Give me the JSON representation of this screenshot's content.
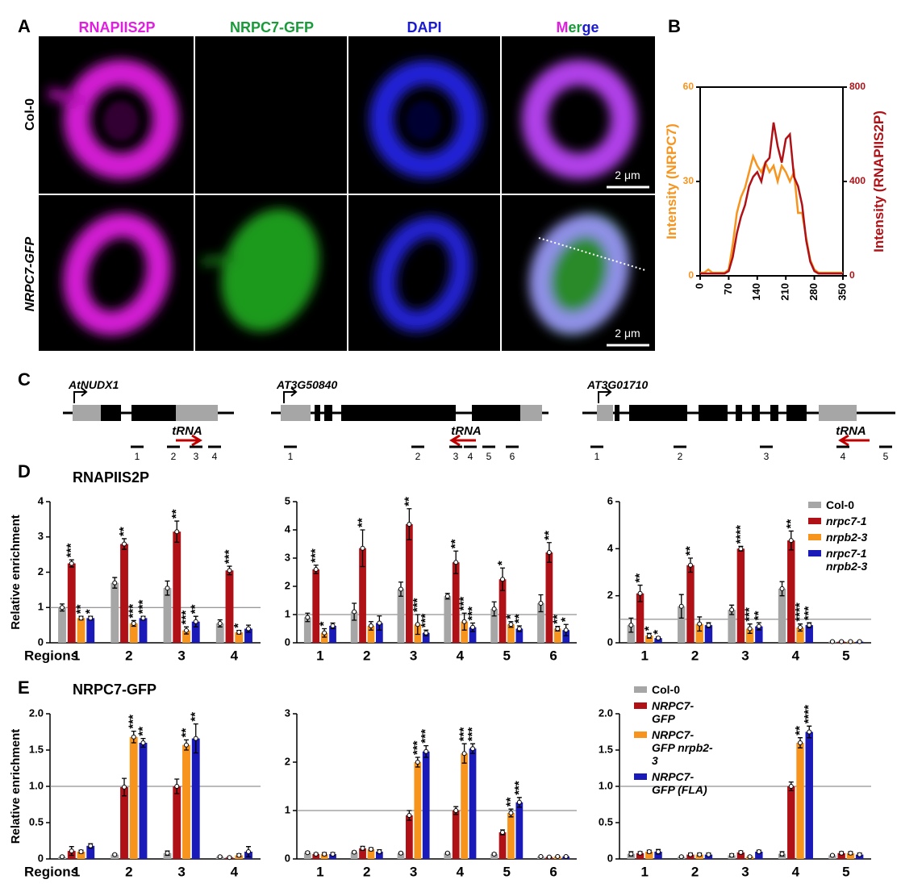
{
  "panel_labels": [
    "A",
    "B",
    "C",
    "D",
    "E"
  ],
  "microscopy": {
    "columns": [
      "RNAPIIS2P",
      "NRPC7-GFP",
      "DAPI"
    ],
    "merge": [
      "M",
      "er",
      "ge"
    ],
    "rows": [
      "Col-0",
      "NRPC7-GFP"
    ],
    "scale_bar": "2 μm"
  },
  "gene_diagrams": [
    {
      "name": "AtNUDX1",
      "trna": "tRNA",
      "regions": [
        "1",
        "2",
        "3",
        "4"
      ]
    },
    {
      "name": "AT3G50840",
      "trna": "tRNA",
      "regions": [
        "1",
        "2",
        "3",
        "4",
        "5",
        "6"
      ]
    },
    {
      "name": "AT3G01710",
      "trna": "tRNA",
      "regions": [
        "1",
        "2",
        "3",
        "4",
        "5"
      ]
    }
  ],
  "chart_data": [
    {
      "type": "line",
      "x": [
        0,
        10,
        20,
        30,
        40,
        50,
        60,
        70,
        80,
        90,
        100,
        110,
        120,
        130,
        140,
        150,
        160,
        170,
        180,
        190,
        200,
        210,
        220,
        230,
        240,
        250,
        260,
        270,
        280,
        290,
        300,
        310,
        320,
        330,
        340,
        350
      ],
      "xlim": [
        0,
        350
      ],
      "xticks": [
        0,
        70,
        140,
        210,
        280,
        350
      ],
      "ylim": [
        0,
        60
      ],
      "yticks": [
        0,
        30,
        60
      ],
      "y2lim": [
        0,
        800
      ],
      "y2ticks": [
        0,
        400,
        800
      ],
      "ylabel": "Intensity (NRPC7)",
      "y2label": "Intensity (RNAPIIS2P)",
      "series": [
        {
          "color": "#f7941d",
          "values": [
            1,
            1,
            2,
            1,
            1,
            1,
            1,
            2,
            10,
            20,
            25,
            28,
            33,
            38,
            35,
            33,
            36,
            33,
            35,
            30,
            35,
            33,
            30,
            33,
            20,
            20,
            12,
            5,
            2,
            1,
            1,
            1,
            1,
            1,
            1,
            1
          ]
        },
        {
          "color": "#b01116",
          "axis": "y2",
          "values": [
            10,
            10,
            10,
            10,
            10,
            10,
            10,
            20,
            80,
            180,
            250,
            300,
            380,
            420,
            440,
            400,
            480,
            500,
            650,
            550,
            480,
            580,
            600,
            420,
            380,
            300,
            150,
            60,
            20,
            10,
            10,
            10,
            10,
            10,
            10,
            10
          ]
        }
      ]
    },
    {
      "type": "bar",
      "title": "RNAPIIS2P",
      "ylabel": "Relative enrichment",
      "xlabel": "Regions",
      "categories": [
        "1",
        "2",
        "3",
        "4"
      ],
      "ylim": [
        0,
        4
      ],
      "yticks": [
        0,
        1,
        2,
        3,
        4
      ],
      "reference_line": 1,
      "series": [
        {
          "color": "#a6a6a6",
          "values": [
            1.0,
            1.7,
            1.55,
            0.55
          ],
          "errors": [
            0.1,
            0.15,
            0.2,
            0.1
          ],
          "significance": [
            null,
            null,
            null,
            null
          ]
        },
        {
          "color": "#b01116",
          "values": [
            2.25,
            2.8,
            3.15,
            2.05
          ],
          "errors": [
            0.1,
            0.15,
            0.3,
            0.12
          ],
          "significance": [
            "***",
            "**",
            "**",
            "***"
          ]
        },
        {
          "color": "#f7941d",
          "values": [
            0.7,
            0.55,
            0.35,
            0.3
          ],
          "errors": [
            0.05,
            0.08,
            0.1,
            0.05
          ],
          "significance": [
            "**",
            "***",
            "***",
            "*"
          ]
        },
        {
          "color": "#1a1ab8",
          "values": [
            0.7,
            0.7,
            0.6,
            0.4
          ],
          "errors": [
            0.05,
            0.05,
            0.15,
            0.1
          ],
          "significance": [
            "*",
            "***",
            "**",
            null
          ]
        }
      ]
    },
    {
      "type": "bar",
      "categories": [
        "1",
        "2",
        "3",
        "4",
        "5",
        "6"
      ],
      "ylim": [
        0,
        5
      ],
      "yticks": [
        0,
        1,
        2,
        3,
        4,
        5
      ],
      "reference_line": 1,
      "series": [
        {
          "color": "#a6a6a6",
          "values": [
            0.9,
            1.1,
            1.9,
            1.65,
            1.2,
            1.4
          ],
          "errors": [
            0.15,
            0.3,
            0.25,
            0.1,
            0.25,
            0.3
          ],
          "significance": [
            null,
            null,
            null,
            null,
            null,
            null
          ]
        },
        {
          "color": "#b01116",
          "values": [
            2.6,
            3.35,
            4.2,
            2.85,
            2.25,
            3.2
          ],
          "errors": [
            0.15,
            0.65,
            0.55,
            0.4,
            0.4,
            0.35
          ],
          "significance": [
            "***",
            "**",
            "**",
            "**",
            "*",
            "**"
          ]
        },
        {
          "color": "#f7941d",
          "values": [
            0.35,
            0.6,
            0.65,
            0.75,
            0.65,
            0.5
          ],
          "errors": [
            0.15,
            0.15,
            0.35,
            0.3,
            0.1,
            0.08
          ],
          "significance": [
            "*",
            null,
            "***",
            "***",
            "*",
            "**"
          ]
        },
        {
          "color": "#1a1ab8",
          "values": [
            0.6,
            0.7,
            0.35,
            0.55,
            0.5,
            0.45
          ],
          "errors": [
            0.1,
            0.25,
            0.1,
            0.15,
            0.1,
            0.2
          ],
          "significance": [
            null,
            null,
            "***",
            "***",
            "**",
            "*"
          ]
        }
      ]
    },
    {
      "type": "bar",
      "categories": [
        "1",
        "2",
        "3",
        "4",
        "5"
      ],
      "ylim": [
        0,
        6
      ],
      "yticks": [
        0,
        2,
        4,
        6
      ],
      "reference_line": 1,
      "legend": "upper right",
      "series": [
        {
          "name": "Col-0",
          "color": "#a6a6a6",
          "values": [
            0.75,
            1.55,
            1.4,
            2.3,
            0.05
          ],
          "errors": [
            0.3,
            0.5,
            0.2,
            0.3,
            0.02
          ],
          "significance": [
            null,
            null,
            null,
            null,
            null
          ]
        },
        {
          "name": "nrpc7-1",
          "color": "#b01116",
          "values": [
            2.1,
            3.3,
            4.0,
            4.35,
            0.05
          ],
          "errors": [
            0.35,
            0.3,
            0.1,
            0.4,
            0.02
          ],
          "significance": [
            "**",
            "**",
            "****",
            "**",
            null
          ]
        },
        {
          "name": "nrpb2-3",
          "color": "#f7941d",
          "values": [
            0.3,
            0.8,
            0.6,
            0.65,
            0.05
          ],
          "errors": [
            0.1,
            0.3,
            0.2,
            0.15,
            0.02
          ],
          "significance": [
            "*",
            null,
            "***",
            "****",
            null
          ]
        },
        {
          "name": "nrpc7-1 nrpb2-3",
          "color": "#1a1ab8",
          "values": [
            0.2,
            0.75,
            0.7,
            0.75,
            0.05
          ],
          "errors": [
            0.05,
            0.1,
            0.15,
            0.1,
            0.02
          ],
          "significance": [
            "*",
            null,
            "**",
            "***",
            null
          ]
        }
      ]
    },
    {
      "type": "bar",
      "title": "NRPC7-GFP",
      "ylabel": "Relative enrichment",
      "xlabel": "Regions",
      "categories": [
        "1",
        "2",
        "3",
        "4"
      ],
      "ylim": [
        0,
        2
      ],
      "yticks": [
        0,
        0.5,
        {
          "value": 1,
          "label": "1.0"
        },
        1.5,
        {
          "value": 2,
          "label": "2.0"
        }
      ],
      "reference_line": 1,
      "series": [
        {
          "color": "#a6a6a6",
          "values": [
            0.03,
            0.06,
            0.08,
            0.03
          ],
          "errors": [
            0.01,
            0.01,
            0.03,
            0.01
          ],
          "significance": [
            null,
            null,
            null,
            null
          ]
        },
        {
          "color": "#b01116",
          "values": [
            0.11,
            0.99,
            1.0,
            0.02
          ],
          "errors": [
            0.06,
            0.12,
            0.1,
            0.01
          ],
          "significance": [
            null,
            null,
            null,
            null
          ]
        },
        {
          "color": "#f7941d",
          "values": [
            0.1,
            1.68,
            1.57,
            0.05
          ],
          "errors": [
            0.02,
            0.08,
            0.07,
            0.02
          ],
          "significance": [
            null,
            "***",
            "**",
            null
          ]
        },
        {
          "color": "#1a1ab8",
          "values": [
            0.18,
            1.6,
            1.66,
            0.1
          ],
          "errors": [
            0.03,
            0.06,
            0.2,
            0.07
          ],
          "significance": [
            null,
            "**",
            "**",
            null
          ]
        }
      ]
    },
    {
      "type": "bar",
      "categories": [
        "1",
        "2",
        "3",
        "4",
        "5",
        "6"
      ],
      "ylim": [
        0,
        3
      ],
      "yticks": [
        0,
        1,
        2,
        3
      ],
      "reference_line": 1,
      "series": [
        {
          "color": "#a6a6a6",
          "values": [
            0.13,
            0.14,
            0.12,
            0.12,
            0.1,
            0.05
          ],
          "errors": [
            0.02,
            0.02,
            0.02,
            0.02,
            0.02,
            0.01
          ],
          "significance": [
            null,
            null,
            null,
            null,
            null,
            null
          ]
        },
        {
          "color": "#b01116",
          "values": [
            0.1,
            0.22,
            0.9,
            1.0,
            0.55,
            0.04
          ],
          "errors": [
            0.02,
            0.04,
            0.1,
            0.08,
            0.05,
            0.01
          ],
          "significance": [
            null,
            null,
            null,
            null,
            null,
            null
          ]
        },
        {
          "color": "#f7941d",
          "values": [
            0.1,
            0.2,
            2.0,
            2.18,
            0.95,
            0.05
          ],
          "errors": [
            0.03,
            0.03,
            0.1,
            0.2,
            0.08,
            0.01
          ],
          "significance": [
            null,
            null,
            "***",
            "***",
            "**",
            null
          ]
        },
        {
          "color": "#1a1ab8",
          "values": [
            0.1,
            0.15,
            2.22,
            2.28,
            1.17,
            0.05
          ],
          "errors": [
            0.03,
            0.04,
            0.12,
            0.1,
            0.1,
            0.01
          ],
          "significance": [
            null,
            null,
            "***",
            "***",
            "***",
            null
          ]
        }
      ]
    },
    {
      "type": "bar",
      "categories": [
        "1",
        "2",
        "3",
        "4",
        "5"
      ],
      "ylim": [
        0,
        2
      ],
      "yticks": [
        0,
        0.5,
        {
          "value": 1,
          "label": "1.0"
        },
        1.5,
        {
          "value": 2,
          "label": "2.0"
        }
      ],
      "reference_line": 1,
      "legend": "upper left",
      "series": [
        {
          "name": "Col-0",
          "color": "#a6a6a6",
          "values": [
            0.07,
            0.03,
            0.05,
            0.07,
            0.05
          ],
          "errors": [
            0.03,
            0.01,
            0.02,
            0.03,
            0.01
          ],
          "significance": [
            null,
            null,
            null,
            null,
            null
          ]
        },
        {
          "name": "NRPC7-GFP",
          "color": "#b01116",
          "values": [
            0.08,
            0.06,
            0.09,
            1.0,
            0.08
          ],
          "errors": [
            0.02,
            0.02,
            0.02,
            0.06,
            0.02
          ],
          "significance": [
            null,
            null,
            null,
            null,
            null
          ]
        },
        {
          "name": "NRPC7-GFP nrpb2-3",
          "color": "#f7941d",
          "values": [
            0.1,
            0.06,
            0.03,
            1.6,
            0.08
          ],
          "errors": [
            0.02,
            0.02,
            0.01,
            0.07,
            0.02
          ],
          "significance": [
            null,
            null,
            null,
            "**",
            null
          ]
        },
        {
          "name": "NRPC7-GFP (FLA)",
          "color": "#1a1ab8",
          "values": [
            0.1,
            0.06,
            0.1,
            1.75,
            0.06
          ],
          "errors": [
            0.03,
            0.02,
            0.02,
            0.08,
            0.02
          ],
          "significance": [
            null,
            null,
            null,
            "****",
            null
          ]
        }
      ]
    }
  ]
}
